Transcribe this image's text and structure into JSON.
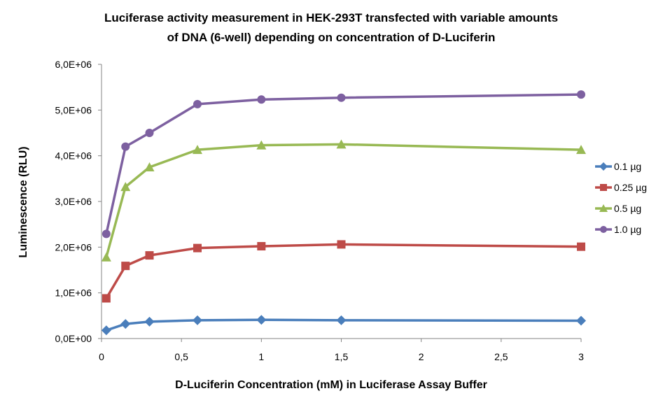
{
  "chart_data": {
    "type": "line",
    "title_line1": "Luciferase activity measurement in HEK-293T transfected with variable amounts",
    "title_line2": "of DNA (6-well) depending on concentration of D-Luciferin",
    "xlabel": "D-Luciferin Concentration (mM) in Luciferase Assay Buffer",
    "ylabel": "Luminescence (RLU)",
    "xlim": [
      0,
      3
    ],
    "ylim": [
      0,
      6000000
    ],
    "x_ticks": [
      0,
      0.5,
      1,
      1.5,
      2,
      2.5,
      3
    ],
    "x_tick_labels": [
      "0",
      "0,5",
      "1",
      "1,5",
      "2",
      "2,5",
      "3"
    ],
    "y_ticks": [
      0,
      1000000,
      2000000,
      3000000,
      4000000,
      5000000,
      6000000
    ],
    "y_tick_labels": [
      "0,0E+00",
      "1,0E+06",
      "2,0E+06",
      "3,0E+06",
      "4,0E+06",
      "5,0E+06",
      "6,0E+06"
    ],
    "grid": false,
    "legend_position": "right",
    "x": [
      0.03,
      0.15,
      0.3,
      0.6,
      1,
      1.5,
      3
    ],
    "series": [
      {
        "name": "0.1 µg",
        "color": "#4a7ebb",
        "marker": "diamond",
        "values": [
          180000,
          320000,
          370000,
          400000,
          410000,
          400000,
          390000
        ]
      },
      {
        "name": "0.25 µg",
        "color": "#be4b48",
        "marker": "square",
        "values": [
          880000,
          1590000,
          1820000,
          1980000,
          2020000,
          2060000,
          2010000
        ]
      },
      {
        "name": "0.5 µg",
        "color": "#98b954",
        "marker": "triangle",
        "values": [
          1780000,
          3320000,
          3750000,
          4130000,
          4230000,
          4250000,
          4130000
        ]
      },
      {
        "name": "1.0 µg",
        "color": "#7d60a0",
        "marker": "circle",
        "values": [
          2290000,
          4200000,
          4500000,
          5130000,
          5230000,
          5270000,
          5340000
        ]
      }
    ]
  }
}
